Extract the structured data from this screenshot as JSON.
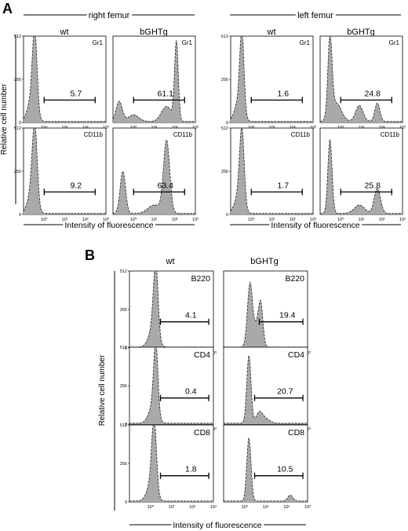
{
  "panels": {
    "A": {
      "label": "A",
      "groups": [
        {
          "title": "right femur",
          "columns": [
            "wt",
            "bGHTg"
          ]
        },
        {
          "title": "left femur",
          "columns": [
            "wt",
            "bGHTg"
          ]
        }
      ],
      "ylabel": "Relative cell number",
      "xlabel": "Intensity of fluorescence",
      "y_ticks": [
        "512",
        "256",
        "0"
      ],
      "x_ticks": [
        "10⁰",
        "10¹",
        "10²",
        "10³"
      ]
    },
    "B": {
      "label": "B",
      "columns": [
        "wt",
        "bGHTg"
      ],
      "ylabel": "Relative cell number",
      "xlabel": "Intensity of fluorescence",
      "y_ticks": [
        "512",
        "256",
        "0"
      ],
      "x_ticks": [
        "10⁰",
        "10¹",
        "10²",
        "10³"
      ]
    }
  },
  "chart_data": [
    {
      "type": "area",
      "panel": "A",
      "scale": {
        "x": "log",
        "xlim": [
          0.1,
          1000
        ],
        "ylim": [
          0,
          512
        ]
      },
      "plots": [
        {
          "id": "A-rf-wt-gr1",
          "marker": "Gr1",
          "value": "5.7",
          "gate": [
            1,
            300
          ],
          "peaks": [
            {
              "x": 0.35,
              "h": 460,
              "w": 0.11
            },
            {
              "x": 0.25,
              "h": 130,
              "w": 0.2
            }
          ]
        },
        {
          "id": "A-rf-tg-gr1",
          "marker": "Gr1",
          "value": "61.1",
          "gate": [
            1,
            300
          ],
          "peaks": [
            {
              "x": 0.2,
              "h": 120,
              "w": 0.15
            },
            {
              "x": 1.0,
              "h": 40,
              "w": 0.25
            },
            {
              "x": 120,
              "h": 470,
              "w": 0.09
            },
            {
              "x": 40,
              "h": 90,
              "w": 0.25
            }
          ]
        },
        {
          "id": "A-rf-wt-cd11b",
          "marker": "CD11b",
          "value": "9.2",
          "gate": [
            1,
            300
          ],
          "peaks": [
            {
              "x": 0.35,
              "h": 450,
              "w": 0.12
            },
            {
              "x": 0.25,
              "h": 120,
              "w": 0.2
            }
          ]
        },
        {
          "id": "A-rf-tg-cd11b",
          "marker": "CD11b",
          "value": "63.4",
          "gate": [
            1,
            300
          ],
          "peaks": [
            {
              "x": 0.3,
              "h": 250,
              "w": 0.13
            },
            {
              "x": 40,
              "h": 430,
              "w": 0.15
            },
            {
              "x": 10,
              "h": 50,
              "w": 0.3
            }
          ]
        },
        {
          "id": "A-lf-wt-gr1",
          "marker": "Gr1",
          "value": "1.6",
          "gate": [
            1,
            300
          ],
          "peaks": [
            {
              "x": 0.35,
              "h": 460,
              "w": 0.1
            },
            {
              "x": 0.25,
              "h": 120,
              "w": 0.2
            }
          ]
        },
        {
          "id": "A-lf-tg-gr1",
          "marker": "Gr1",
          "value": "24.8",
          "gate": [
            1,
            300
          ],
          "peaks": [
            {
              "x": 0.3,
              "h": 470,
              "w": 0.1
            },
            {
              "x": 0.6,
              "h": 110,
              "w": 0.25
            },
            {
              "x": 8,
              "h": 95,
              "w": 0.18
            },
            {
              "x": 60,
              "h": 110,
              "w": 0.12
            }
          ]
        },
        {
          "id": "A-lf-wt-cd11b",
          "marker": "CD11b",
          "value": "1.7",
          "gate": [
            1,
            300
          ],
          "peaks": [
            {
              "x": 0.35,
              "h": 430,
              "w": 0.11
            },
            {
              "x": 0.25,
              "h": 110,
              "w": 0.2
            }
          ]
        },
        {
          "id": "A-lf-tg-cd11b",
          "marker": "CD11b",
          "value": "25.8",
          "gate": [
            1,
            300
          ],
          "peaks": [
            {
              "x": 0.3,
              "h": 440,
              "w": 0.1
            },
            {
              "x": 8,
              "h": 50,
              "w": 0.25
            },
            {
              "x": 60,
              "h": 150,
              "w": 0.15
            }
          ]
        }
      ]
    },
    {
      "type": "area",
      "panel": "B",
      "scale": {
        "x": "log",
        "xlim": [
          0.1,
          1000
        ],
        "ylim": [
          0,
          512
        ]
      },
      "plots": [
        {
          "id": "B-wt-b220",
          "marker": "B220",
          "value": "4.1",
          "gate": [
            3,
            600
          ],
          "peaks": [
            {
              "x": 1.8,
              "h": 470,
              "w": 0.11
            },
            {
              "x": 1.3,
              "h": 120,
              "w": 0.2
            }
          ]
        },
        {
          "id": "B-tg-b220",
          "marker": "B220",
          "value": "19.4",
          "gate": [
            5,
            600
          ],
          "peaks": [
            {
              "x": 1.8,
              "h": 420,
              "w": 0.12
            },
            {
              "x": 6,
              "h": 230,
              "w": 0.1
            },
            {
              "x": 4,
              "h": 150,
              "w": 0.15
            }
          ]
        },
        {
          "id": "B-wt-cd4",
          "marker": "CD4",
          "value": "0.4",
          "gate": [
            3,
            600
          ],
          "peaks": [
            {
              "x": 1.8,
              "h": 460,
              "w": 0.1
            },
            {
              "x": 1.3,
              "h": 110,
              "w": 0.2
            }
          ]
        },
        {
          "id": "B-tg-cd4",
          "marker": "CD4",
          "value": "20.7",
          "gate": [
            3,
            600
          ],
          "peaks": [
            {
              "x": 1.6,
              "h": 450,
              "w": 0.1
            },
            {
              "x": 5,
              "h": 70,
              "w": 0.15
            },
            {
              "x": 10,
              "h": 30,
              "w": 0.2
            }
          ]
        },
        {
          "id": "B-wt-cd8",
          "marker": "CD8",
          "value": "1.8",
          "gate": [
            3,
            600
          ],
          "peaks": [
            {
              "x": 1.5,
              "h": 460,
              "w": 0.11
            },
            {
              "x": 1.1,
              "h": 120,
              "w": 0.2
            }
          ]
        },
        {
          "id": "B-tg-cd8",
          "marker": "CD8",
          "value": "10.5",
          "gate": [
            3,
            600
          ],
          "peaks": [
            {
              "x": 1.6,
              "h": 420,
              "w": 0.1
            },
            {
              "x": 150,
              "h": 40,
              "w": 0.12
            }
          ]
        }
      ]
    }
  ]
}
